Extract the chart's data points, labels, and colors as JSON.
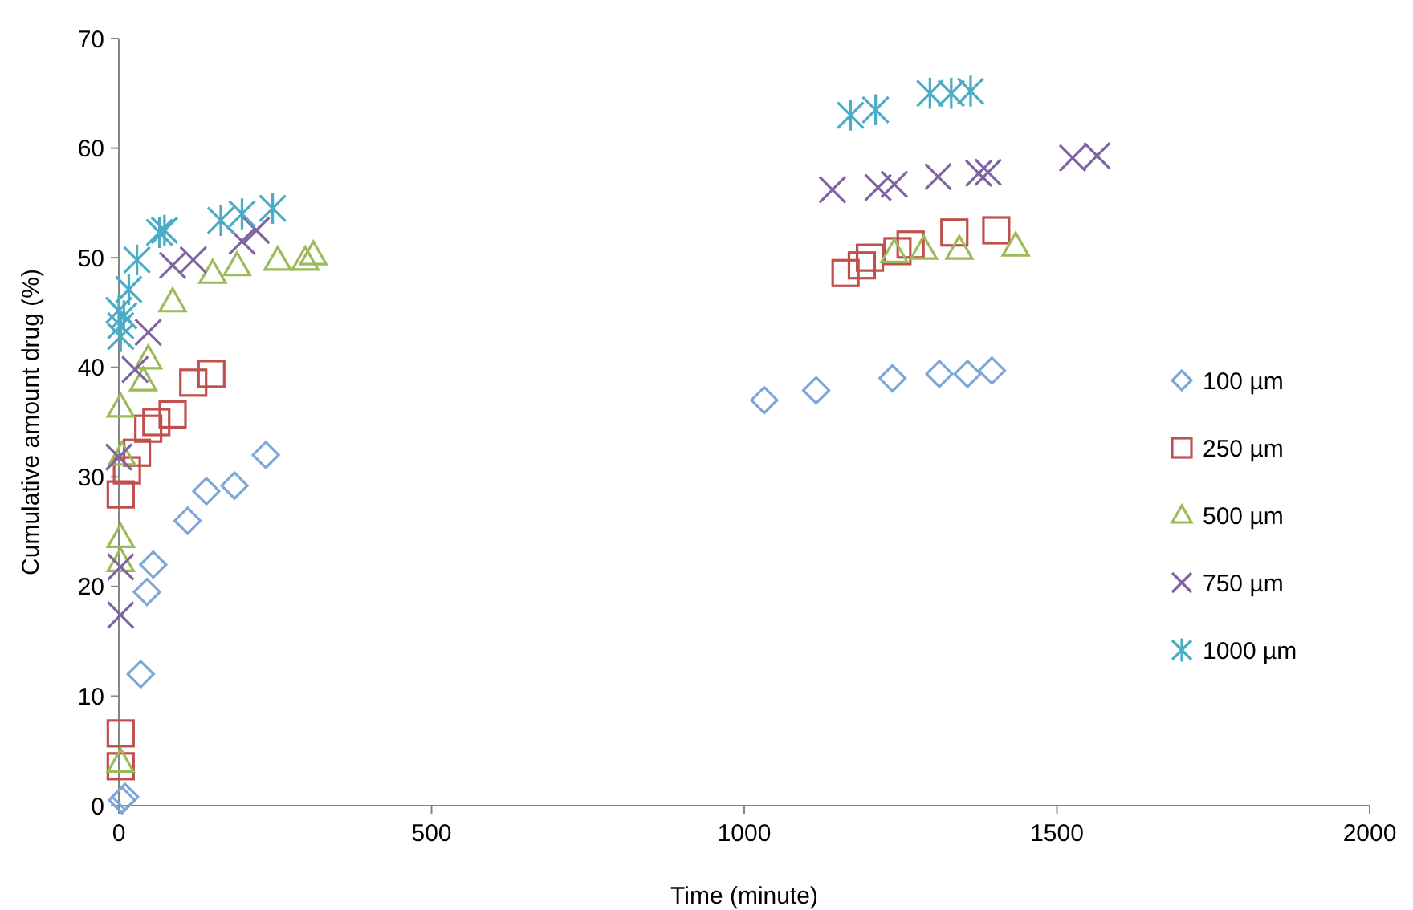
{
  "chart_data": {
    "type": "scatter",
    "xlabel": "Time (minute)",
    "ylabel": "Cumulative amount drug (%)",
    "xlim": [
      0,
      2000
    ],
    "xticks": [
      0,
      500,
      1000,
      1500,
      2000
    ],
    "ylim": [
      0,
      70
    ],
    "yticks": [
      0,
      10,
      20,
      30,
      40,
      50,
      60,
      70
    ],
    "grid": false,
    "legend": "right",
    "series": [
      {
        "name": "100 µm",
        "color": "#7da7d9",
        "marker": "diamond",
        "x": [
          5,
          10,
          35,
          45,
          55,
          110,
          140,
          185,
          235,
          1032,
          1115,
          1237,
          1312,
          1357,
          1396
        ],
        "values": [
          0.5,
          0.8,
          12,
          19.5,
          22,
          26,
          28.7,
          29.2,
          32,
          37,
          37.9,
          39,
          39.4,
          39.4,
          39.7
        ]
      },
      {
        "name": "250 µm",
        "color": "#c0504d",
        "marker": "square",
        "x": [
          3,
          3,
          3,
          13,
          29,
          47,
          60,
          86,
          119,
          148,
          1162,
          1188,
          1201,
          1245,
          1266,
          1336,
          1403
        ],
        "values": [
          6.6,
          3.6,
          28.4,
          30.6,
          32.2,
          34.4,
          35,
          35.7,
          38.6,
          39.4,
          48.6,
          49.3,
          50,
          50.6,
          51.2,
          52.3,
          52.5
        ]
      },
      {
        "name": "500 µm",
        "color": "#9bbb59",
        "marker": "triangle",
        "x": [
          3,
          3,
          3,
          5,
          3,
          39,
          47,
          86,
          150,
          189,
          254,
          298,
          311,
          1240,
          1287,
          1344,
          1434
        ],
        "values": [
          4,
          24.5,
          22.3,
          32,
          36.4,
          38.8,
          40.8,
          46,
          48.6,
          49.3,
          49.8,
          49.8,
          50.3,
          50.5,
          50.8,
          50.8,
          51.1
        ]
      },
      {
        "name": "750 µm",
        "color": "#8064a2",
        "marker": "cross",
        "x": [
          3,
          3,
          0,
          26,
          47,
          86,
          119,
          197,
          220,
          1141,
          1214,
          1240,
          1310,
          1375,
          1390,
          1525,
          1564
        ],
        "values": [
          17.4,
          21.8,
          31.8,
          39.8,
          43.2,
          49.3,
          49.8,
          51.5,
          52.5,
          56.2,
          56.4,
          56.7,
          57.4,
          57.7,
          57.8,
          59.1,
          59.3
        ]
      },
      {
        "name": "1000 µm",
        "color": "#4bacc6",
        "x": [
          0,
          3,
          3,
          8,
          16,
          29,
          65,
          73,
          163,
          197,
          246,
          1170,
          1210,
          1297,
          1331,
          1362
        ],
        "values": [
          45.2,
          43.8,
          42.8,
          44.7,
          47.1,
          49.8,
          52.3,
          52.5,
          53.4,
          54,
          54.5,
          63,
          63.5,
          65,
          65,
          65.2
        ]
      }
    ]
  }
}
